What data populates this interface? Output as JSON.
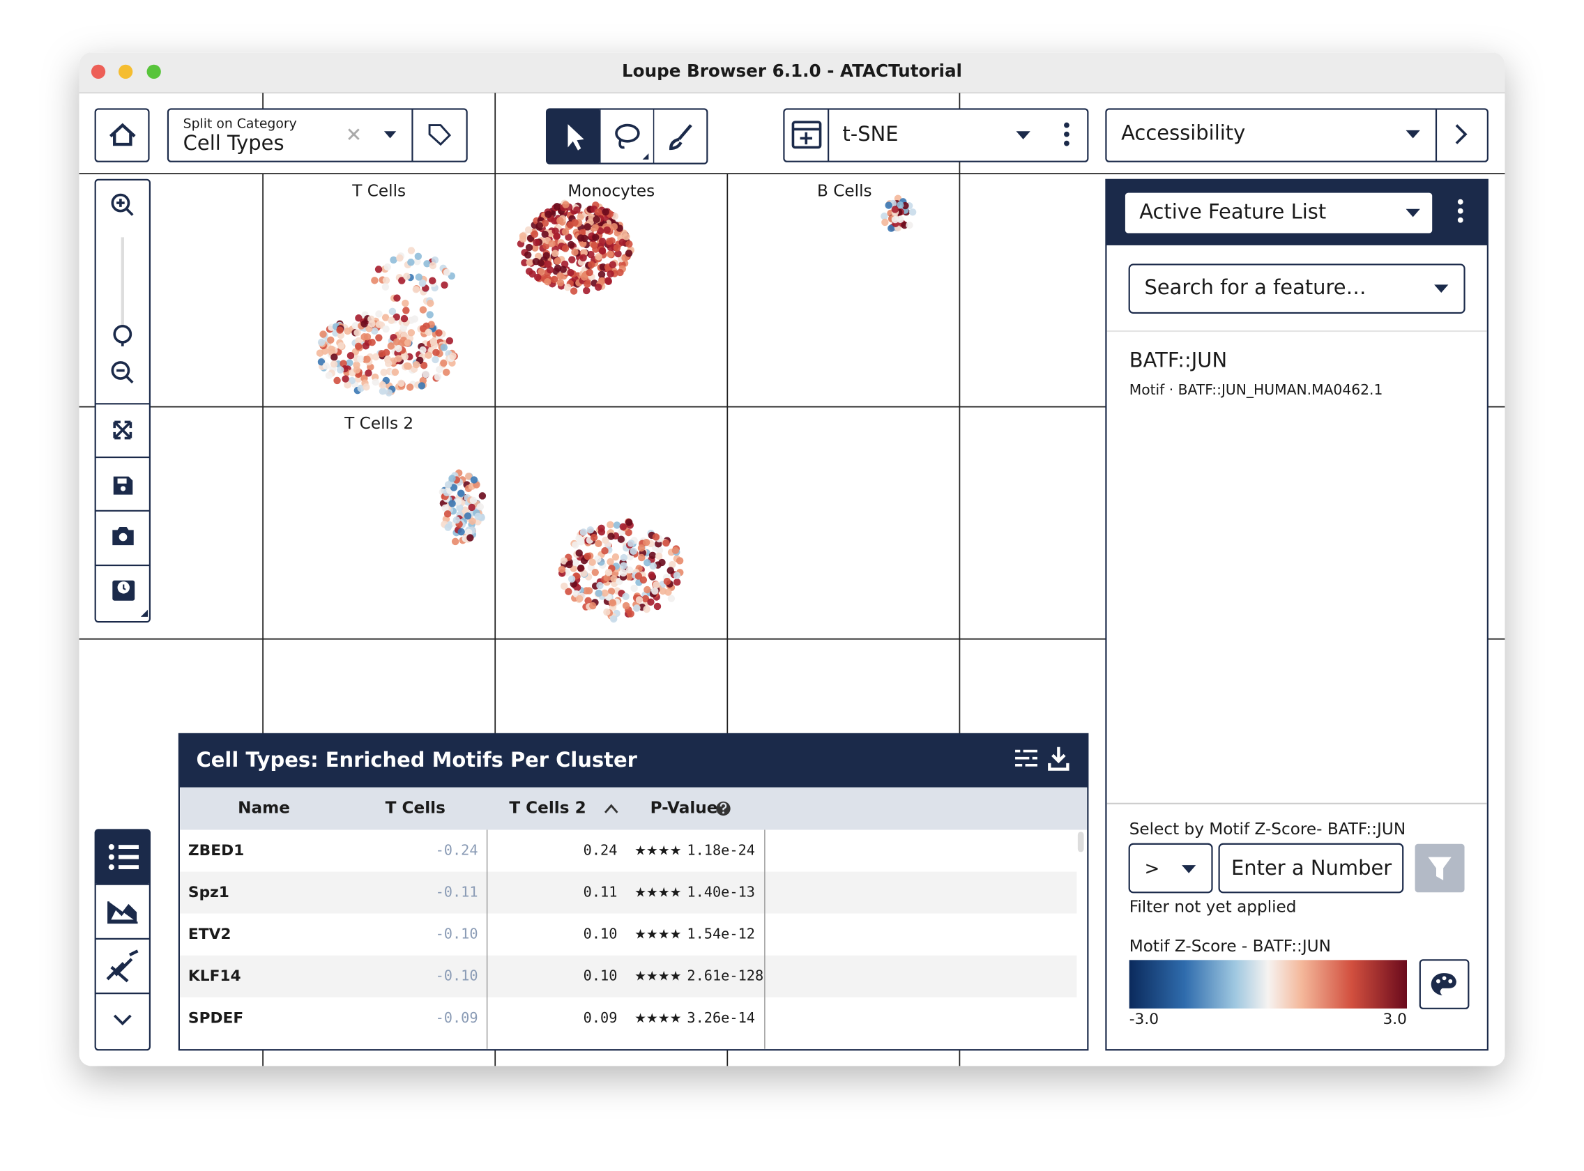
{
  "window": {
    "title": "Loupe Browser 6.1.0 - ATACTutorial"
  },
  "toolbar": {
    "split_label": "Split on Category",
    "split_value": "Cell Types",
    "projection": "t-SNE",
    "feature_mode": "Accessibility"
  },
  "plot": {
    "facets": [
      "T Cells",
      "Monocytes",
      "B Cells",
      "T Cells 2"
    ]
  },
  "sidebar": {
    "list": "Active Feature List",
    "search_placeholder": "Search for a feature…",
    "feature": {
      "name": "BATF::JUN",
      "detail": "Motif · BATF::JUN_HUMAN.MA0462.1"
    },
    "filter_label": "Select by Motif Z-Score- BATF::JUN",
    "operator": ">",
    "input_placeholder": "Enter a Number",
    "filter_status": "Filter not yet applied",
    "scale_label": "Motif Z-Score - BATF::JUN",
    "scale_min": "-3.0",
    "scale_max": "3.0"
  },
  "table": {
    "title": "Cell Types: Enriched Motifs Per Cluster",
    "columns": [
      "Name",
      "T Cells",
      "T Cells 2",
      "P-Value"
    ],
    "rows": [
      [
        "ZBED1",
        "-0.24",
        "0.24",
        "★★★★",
        "1.18e-24"
      ],
      [
        "Spz1",
        "-0.11",
        "0.11",
        "★★★★",
        "1.40e-13"
      ],
      [
        "ETV2",
        "-0.10",
        "0.10",
        "★★★★",
        "1.54e-12"
      ],
      [
        "KLF14",
        "-0.10",
        "0.10",
        "★★★★",
        "2.61e-128"
      ],
      [
        "SPDEF",
        "-0.09",
        "0.09",
        "★★★★",
        "3.26e-14"
      ]
    ]
  }
}
